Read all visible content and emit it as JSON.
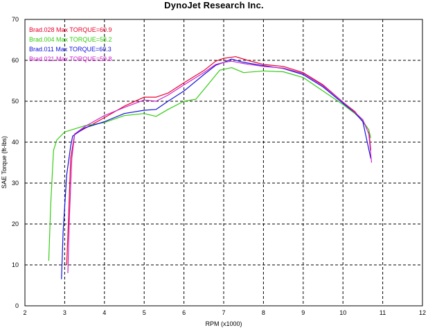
{
  "chart_data": {
    "type": "line",
    "title": "DynoJet Research Inc.",
    "xlabel": "RPM (x1000)",
    "ylabel": "SAE Torque (ft-lbs)",
    "xlim": [
      2,
      12
    ],
    "ylim": [
      0,
      70
    ],
    "x_ticks": [
      "2",
      "3",
      "4",
      "5",
      "6",
      "7",
      "8",
      "9",
      "10",
      "11",
      "12"
    ],
    "y_ticks": [
      "0",
      "10",
      "20",
      "30",
      "40",
      "50",
      "60",
      "70"
    ],
    "grid": true,
    "legend_position": "top-left",
    "series": [
      {
        "name": "Brad.028",
        "legend_label": "Brad.028   Max TORQUE=60.9",
        "color": "#e8002a",
        "points": [
          [
            3.05,
            10
          ],
          [
            3.1,
            22
          ],
          [
            3.15,
            36
          ],
          [
            3.25,
            42
          ],
          [
            3.5,
            43.3
          ],
          [
            4.0,
            46
          ],
          [
            4.5,
            48.8
          ],
          [
            5.0,
            51
          ],
          [
            5.3,
            51
          ],
          [
            5.6,
            52
          ],
          [
            6.0,
            54.5
          ],
          [
            6.5,
            57.5
          ],
          [
            6.8,
            59.8
          ],
          [
            7.0,
            60.5
          ],
          [
            7.3,
            60.9
          ],
          [
            7.6,
            60
          ],
          [
            8.0,
            59
          ],
          [
            8.5,
            58.5
          ],
          [
            9.0,
            57
          ],
          [
            9.5,
            54
          ],
          [
            10.0,
            49.8
          ],
          [
            10.3,
            47.5
          ],
          [
            10.5,
            45
          ],
          [
            10.65,
            43
          ],
          [
            10.7,
            38
          ]
        ]
      },
      {
        "name": "Brad.004",
        "legend_label": "Brad.004   Max TORQUE=58.2",
        "color": "#33cc11",
        "points": [
          [
            2.6,
            11
          ],
          [
            2.65,
            25
          ],
          [
            2.72,
            38
          ],
          [
            2.8,
            40.5
          ],
          [
            3.0,
            42.5
          ],
          [
            3.5,
            44
          ],
          [
            4.0,
            44.8
          ],
          [
            4.5,
            46.5
          ],
          [
            5.0,
            47
          ],
          [
            5.3,
            46.3
          ],
          [
            5.6,
            48
          ],
          [
            6.0,
            50
          ],
          [
            6.3,
            50.5
          ],
          [
            6.6,
            54
          ],
          [
            6.9,
            57.6
          ],
          [
            7.2,
            58.2
          ],
          [
            7.5,
            57
          ],
          [
            8.0,
            57.4
          ],
          [
            8.5,
            57.2
          ],
          [
            9.0,
            55.8
          ],
          [
            9.5,
            52.5
          ],
          [
            10.0,
            49.2
          ],
          [
            10.3,
            47
          ],
          [
            10.5,
            45.2
          ],
          [
            10.65,
            43
          ],
          [
            10.7,
            41
          ]
        ]
      },
      {
        "name": "Brad.011",
        "legend_label": "Brad.011   Max TORQUE=60.3",
        "color": "#1010dd",
        "points": [
          [
            2.92,
            6.5
          ],
          [
            2.96,
            18
          ],
          [
            3.05,
            32
          ],
          [
            3.15,
            39
          ],
          [
            3.2,
            41.5
          ],
          [
            3.5,
            43.5
          ],
          [
            4.0,
            45
          ],
          [
            4.5,
            47
          ],
          [
            5.0,
            47.8
          ],
          [
            5.3,
            48
          ],
          [
            5.6,
            50
          ],
          [
            6.0,
            52.5
          ],
          [
            6.5,
            56.5
          ],
          [
            6.8,
            58.8
          ],
          [
            7.0,
            59.5
          ],
          [
            7.2,
            60.3
          ],
          [
            7.5,
            59.5
          ],
          [
            8.0,
            58.7
          ],
          [
            8.5,
            58
          ],
          [
            9.0,
            56.5
          ],
          [
            9.5,
            53.5
          ],
          [
            10.0,
            49.5
          ],
          [
            10.3,
            47.2
          ],
          [
            10.5,
            45
          ],
          [
            10.7,
            36
          ]
        ]
      },
      {
        "name": "Brad.021",
        "legend_label": "Brad.021   Max TORQUE=59.8",
        "color": "#cc22cc",
        "points": [
          [
            3.08,
            8
          ],
          [
            3.12,
            22
          ],
          [
            3.18,
            36
          ],
          [
            3.25,
            42
          ],
          [
            3.5,
            43.8
          ],
          [
            4.0,
            46.5
          ],
          [
            4.5,
            48.5
          ],
          [
            5.0,
            50.3
          ],
          [
            5.3,
            50
          ],
          [
            5.6,
            51.5
          ],
          [
            6.0,
            54
          ],
          [
            6.5,
            57
          ],
          [
            6.8,
            59
          ],
          [
            7.0,
            59.5
          ],
          [
            7.2,
            59.8
          ],
          [
            7.5,
            59.2
          ],
          [
            8.0,
            58.5
          ],
          [
            8.5,
            58.1
          ],
          [
            9.0,
            56.8
          ],
          [
            9.5,
            53.8
          ],
          [
            10.0,
            49.8
          ],
          [
            10.3,
            47.3
          ],
          [
            10.5,
            45.5
          ],
          [
            10.65,
            42
          ],
          [
            10.72,
            35
          ]
        ]
      }
    ]
  }
}
